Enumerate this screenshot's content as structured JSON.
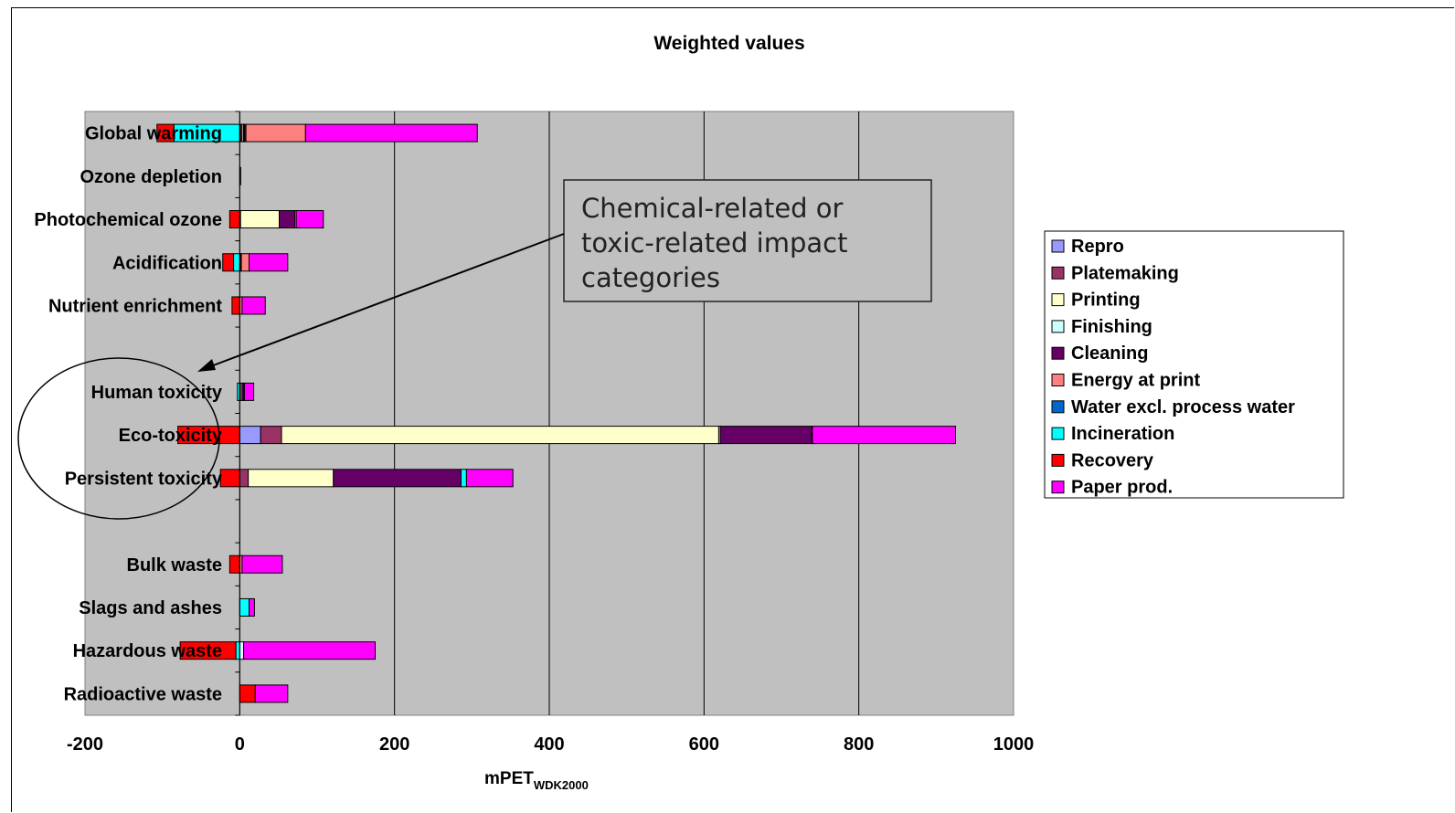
{
  "chart_data": {
    "type": "bar",
    "orientation": "horizontal",
    "stacked": true,
    "title": "Weighted values",
    "xlabel": "mPET",
    "xlabel_subscript": "WDK2000",
    "ylabel": "",
    "xlim": [
      -200,
      1000
    ],
    "xticks": [
      "-200",
      "0",
      "200",
      "400",
      "600",
      "800",
      "1000"
    ],
    "grid": "vertical",
    "plot_background": "#c0c0c0",
    "legend_position": "right",
    "categories": [
      "Global warming",
      "Ozone depletion",
      "Photochemical ozone",
      "Acidification",
      "Nutrient enrichment",
      "",
      "Human toxicity",
      "Eco-toxicity",
      "Persistent toxicity",
      "",
      "Bulk waste",
      "Slags and ashes",
      "Hazardous waste",
      "Radioactive waste"
    ],
    "series": [
      {
        "name": "Repro",
        "color": "#9999ff",
        "values": [
          1,
          0,
          0,
          0,
          0,
          null,
          0,
          27,
          0,
          null,
          0,
          0,
          0,
          0
        ]
      },
      {
        "name": "Platemaking",
        "color": "#993366",
        "values": [
          2,
          0,
          1,
          0,
          0,
          null,
          1,
          27,
          11,
          null,
          0,
          0,
          0,
          0
        ]
      },
      {
        "name": "Printing",
        "color": "#ffffcc",
        "values": [
          2,
          0,
          50,
          1,
          0,
          null,
          2,
          565,
          110,
          null,
          0,
          0,
          0,
          0
        ]
      },
      {
        "name": "Finishing",
        "color": "#ccffff",
        "values": [
          1,
          0,
          0,
          0,
          0,
          null,
          0,
          2,
          0,
          null,
          0,
          0,
          5,
          0
        ]
      },
      {
        "name": "Cleaning",
        "color": "#660066",
        "values": [
          2,
          0,
          20,
          1,
          0,
          null,
          2,
          118,
          165,
          null,
          0,
          0,
          0,
          0
        ]
      },
      {
        "name": "Energy at print",
        "color": "#ff8080",
        "values": [
          77,
          0,
          2,
          10,
          3,
          null,
          1,
          1,
          0,
          null,
          3,
          0,
          0,
          0
        ]
      },
      {
        "name": "Water excl. process water",
        "color": "#0066cc",
        "values": [
          0,
          0,
          0,
          0,
          0,
          null,
          0,
          0,
          0,
          null,
          0,
          0,
          0,
          0
        ]
      },
      {
        "name": "Incineration",
        "color": "#00ffff",
        "values": [
          -85,
          0,
          0,
          -8,
          0,
          null,
          -3,
          0,
          7,
          null,
          0,
          12,
          -5,
          0
        ]
      },
      {
        "name": "Recovery",
        "color": "#ff0000",
        "values": [
          -22,
          0,
          -13,
          -14,
          -10,
          null,
          0,
          -80,
          -25,
          null,
          -13,
          0,
          -72,
          20
        ]
      },
      {
        "name": "Paper prod.",
        "color": "#ff00ff",
        "values": [
          222,
          1,
          35,
          50,
          30,
          null,
          12,
          185,
          60,
          null,
          52,
          7,
          170,
          42
        ]
      }
    ],
    "annotation": {
      "lines": [
        "Chemical-related or",
        "toxic-related impact",
        "categories"
      ]
    }
  }
}
